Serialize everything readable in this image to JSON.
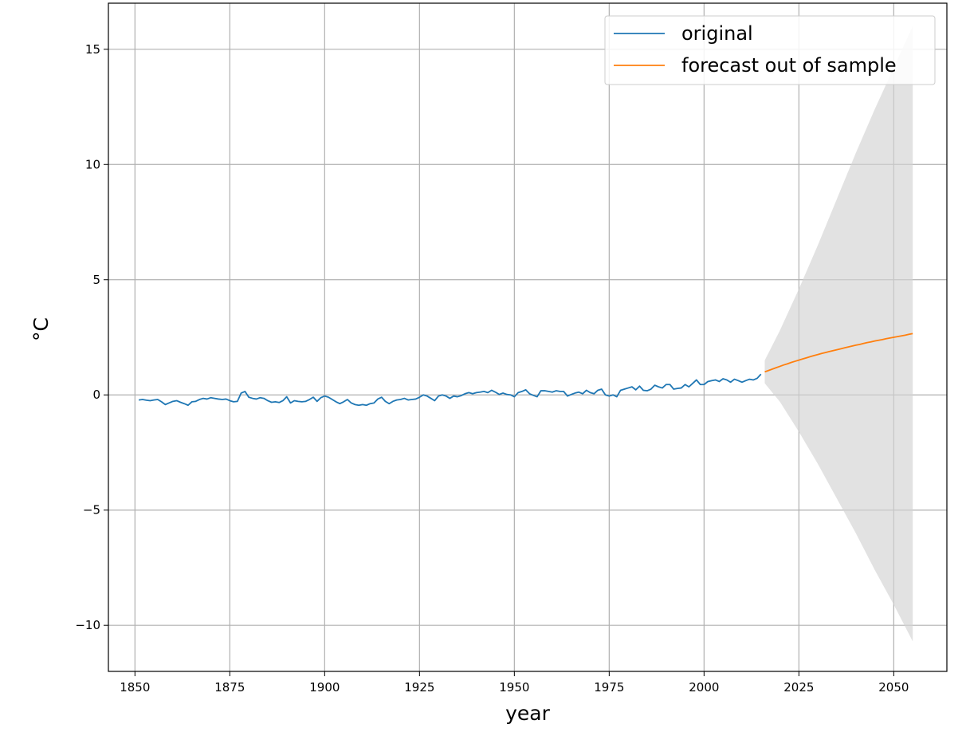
{
  "chart_data": {
    "type": "line",
    "title": "",
    "xlabel": "year",
    "ylabel": "°C",
    "xlim": [
      1843,
      2064
    ],
    "ylim": [
      -12.0,
      17.0
    ],
    "x_ticks": [
      1850,
      1875,
      1900,
      1925,
      1950,
      1975,
      2000,
      2025,
      2050
    ],
    "y_ticks": [
      -10,
      -5,
      0,
      5,
      10,
      15
    ],
    "x_tick_labels": [
      "1850",
      "1875",
      "1900",
      "1925",
      "1950",
      "1975",
      "2000",
      "2025",
      "2050"
    ],
    "y_tick_labels": [
      "−10",
      "−5",
      "0",
      "5",
      "10",
      "15"
    ],
    "grid": true,
    "legend_position": "top-right",
    "series": [
      {
        "name": "original",
        "color": "#1f77b4",
        "x": [
          1851,
          1852,
          1853,
          1854,
          1855,
          1856,
          1857,
          1858,
          1859,
          1860,
          1861,
          1862,
          1863,
          1864,
          1865,
          1866,
          1867,
          1868,
          1869,
          1870,
          1871,
          1872,
          1873,
          1874,
          1875,
          1876,
          1877,
          1878,
          1879,
          1880,
          1881,
          1882,
          1883,
          1884,
          1885,
          1886,
          1887,
          1888,
          1889,
          1890,
          1891,
          1892,
          1893,
          1894,
          1895,
          1896,
          1897,
          1898,
          1899,
          1900,
          1901,
          1902,
          1903,
          1904,
          1905,
          1906,
          1907,
          1908,
          1909,
          1910,
          1911,
          1912,
          1913,
          1914,
          1915,
          1916,
          1917,
          1918,
          1919,
          1920,
          1921,
          1922,
          1923,
          1924,
          1925,
          1926,
          1927,
          1928,
          1929,
          1930,
          1931,
          1932,
          1933,
          1934,
          1935,
          1936,
          1937,
          1938,
          1939,
          1940,
          1941,
          1942,
          1943,
          1944,
          1945,
          1946,
          1947,
          1948,
          1949,
          1950,
          1951,
          1952,
          1953,
          1954,
          1955,
          1956,
          1957,
          1958,
          1959,
          1960,
          1961,
          1962,
          1963,
          1964,
          1965,
          1966,
          1967,
          1968,
          1969,
          1970,
          1971,
          1972,
          1973,
          1974,
          1975,
          1976,
          1977,
          1978,
          1979,
          1980,
          1981,
          1982,
          1983,
          1984,
          1985,
          1986,
          1987,
          1988,
          1989,
          1990,
          1991,
          1992,
          1993,
          1994,
          1995,
          1996,
          1997,
          1998,
          1999,
          2000,
          2001,
          2002,
          2003,
          2004,
          2005,
          2006,
          2007,
          2008,
          2009,
          2010,
          2011,
          2012,
          2013,
          2014,
          2015
        ],
        "values": [
          -0.22,
          -0.2,
          -0.23,
          -0.25,
          -0.22,
          -0.2,
          -0.3,
          -0.42,
          -0.35,
          -0.28,
          -0.25,
          -0.32,
          -0.38,
          -0.45,
          -0.3,
          -0.28,
          -0.2,
          -0.15,
          -0.18,
          -0.12,
          -0.15,
          -0.18,
          -0.2,
          -0.18,
          -0.25,
          -0.3,
          -0.28,
          0.08,
          0.15,
          -0.1,
          -0.15,
          -0.18,
          -0.12,
          -0.15,
          -0.25,
          -0.32,
          -0.3,
          -0.33,
          -0.25,
          -0.08,
          -0.35,
          -0.25,
          -0.28,
          -0.3,
          -0.28,
          -0.2,
          -0.1,
          -0.28,
          -0.12,
          -0.05,
          -0.1,
          -0.2,
          -0.3,
          -0.38,
          -0.3,
          -0.2,
          -0.35,
          -0.42,
          -0.45,
          -0.42,
          -0.45,
          -0.38,
          -0.35,
          -0.18,
          -0.1,
          -0.28,
          -0.38,
          -0.28,
          -0.22,
          -0.2,
          -0.15,
          -0.22,
          -0.2,
          -0.18,
          -0.1,
          0.0,
          -0.05,
          -0.15,
          -0.25,
          -0.05,
          0.0,
          -0.05,
          -0.15,
          -0.05,
          -0.08,
          -0.03,
          0.05,
          0.1,
          0.05,
          0.1,
          0.12,
          0.15,
          0.1,
          0.2,
          0.12,
          0.02,
          0.08,
          0.02,
          0.0,
          -0.08,
          0.1,
          0.15,
          0.22,
          0.05,
          -0.02,
          -0.08,
          0.18,
          0.18,
          0.15,
          0.12,
          0.18,
          0.15,
          0.15,
          -0.05,
          0.02,
          0.08,
          0.12,
          0.05,
          0.2,
          0.1,
          0.05,
          0.2,
          0.25,
          0.0,
          -0.05,
          0.0,
          -0.08,
          0.2,
          0.25,
          0.3,
          0.35,
          0.22,
          0.38,
          0.2,
          0.18,
          0.25,
          0.42,
          0.35,
          0.3,
          0.45,
          0.45,
          0.25,
          0.28,
          0.3,
          0.45,
          0.35,
          0.5,
          0.65,
          0.45,
          0.45,
          0.58,
          0.62,
          0.65,
          0.58,
          0.7,
          0.65,
          0.55,
          0.68,
          0.62,
          0.55,
          0.62,
          0.68,
          0.65,
          0.72,
          0.9
        ]
      },
      {
        "name": "forecast out of sample",
        "color": "#ff7f0e",
        "x": [
          2016,
          2017,
          2018,
          2019,
          2020,
          2021,
          2022,
          2023,
          2024,
          2025,
          2026,
          2027,
          2028,
          2029,
          2030,
          2031,
          2032,
          2033,
          2034,
          2035,
          2036,
          2037,
          2038,
          2039,
          2040,
          2041,
          2042,
          2043,
          2044,
          2045,
          2046,
          2047,
          2048,
          2049,
          2050,
          2051,
          2052,
          2053,
          2054,
          2055
        ],
        "values": [
          1.0,
          1.06,
          1.12,
          1.18,
          1.24,
          1.3,
          1.35,
          1.41,
          1.46,
          1.51,
          1.56,
          1.61,
          1.66,
          1.71,
          1.75,
          1.8,
          1.84,
          1.88,
          1.92,
          1.96,
          2.0,
          2.04,
          2.08,
          2.12,
          2.16,
          2.19,
          2.23,
          2.27,
          2.3,
          2.34,
          2.37,
          2.4,
          2.44,
          2.47,
          2.5,
          2.53,
          2.56,
          2.59,
          2.63,
          2.66
        ]
      }
    ],
    "confidence_band": {
      "color": "#d3d3d3",
      "x": [
        2016,
        2020,
        2025,
        2030,
        2035,
        2040,
        2045,
        2050,
        2055
      ],
      "lower": [
        0.5,
        -0.3,
        -1.6,
        -3.0,
        -4.5,
        -6.0,
        -7.6,
        -9.1,
        -10.7
      ],
      "upper": [
        1.5,
        2.8,
        4.6,
        6.5,
        8.5,
        10.5,
        12.4,
        14.2,
        16.0
      ]
    }
  }
}
